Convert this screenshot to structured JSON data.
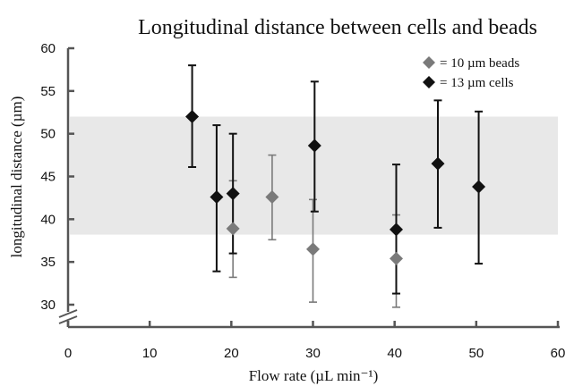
{
  "chart_data": {
    "type": "scatter",
    "title": "Longitudinal distance between cells and beads",
    "xlabel": "Flow rate (µL min⁻¹)",
    "ylabel": "longitudinal distance (µm)",
    "xlim": [
      0,
      60
    ],
    "ylim": [
      30,
      60
    ],
    "x_ticks": [
      "0",
      "10",
      "20",
      "30",
      "40",
      "50",
      "60"
    ],
    "y_ticks": [
      "30",
      "35",
      "40",
      "45",
      "50",
      "55",
      "60"
    ],
    "y_axis_break": true,
    "grid": false,
    "legend_position": "top-right",
    "shaded_band": {
      "y_from": 38.2,
      "y_to": 52.0,
      "color": "#e8e8e8"
    },
    "series": [
      {
        "name": "= 10 µm beads",
        "color": "#7a7a7a",
        "marker": "diamond",
        "points": [
          {
            "x": 20.2,
            "y": 38.9,
            "err_low": 33.2,
            "err_high": 44.5
          },
          {
            "x": 25.0,
            "y": 42.6,
            "err_low": 37.6,
            "err_high": 47.5
          },
          {
            "x": 30.0,
            "y": 36.5,
            "err_low": 30.3,
            "err_high": 42.3
          },
          {
            "x": 40.2,
            "y": 35.4,
            "err_low": 29.7,
            "err_high": 40.5
          }
        ]
      },
      {
        "name": "= 13 µm cells",
        "color": "#111111",
        "marker": "diamond",
        "points": [
          {
            "x": 15.2,
            "y": 52.0,
            "err_low": 46.1,
            "err_high": 58.0
          },
          {
            "x": 18.2,
            "y": 42.6,
            "err_low": 33.9,
            "err_high": 51.0
          },
          {
            "x": 20.2,
            "y": 43.0,
            "err_low": 36.0,
            "err_high": 50.0
          },
          {
            "x": 30.2,
            "y": 48.6,
            "err_low": 40.9,
            "err_high": 56.1
          },
          {
            "x": 40.2,
            "y": 38.8,
            "err_low": 31.3,
            "err_high": 46.4
          },
          {
            "x": 45.3,
            "y": 46.5,
            "err_low": 39.0,
            "err_high": 53.9
          },
          {
            "x": 50.3,
            "y": 43.8,
            "err_low": 34.8,
            "err_high": 52.6
          }
        ]
      }
    ]
  }
}
